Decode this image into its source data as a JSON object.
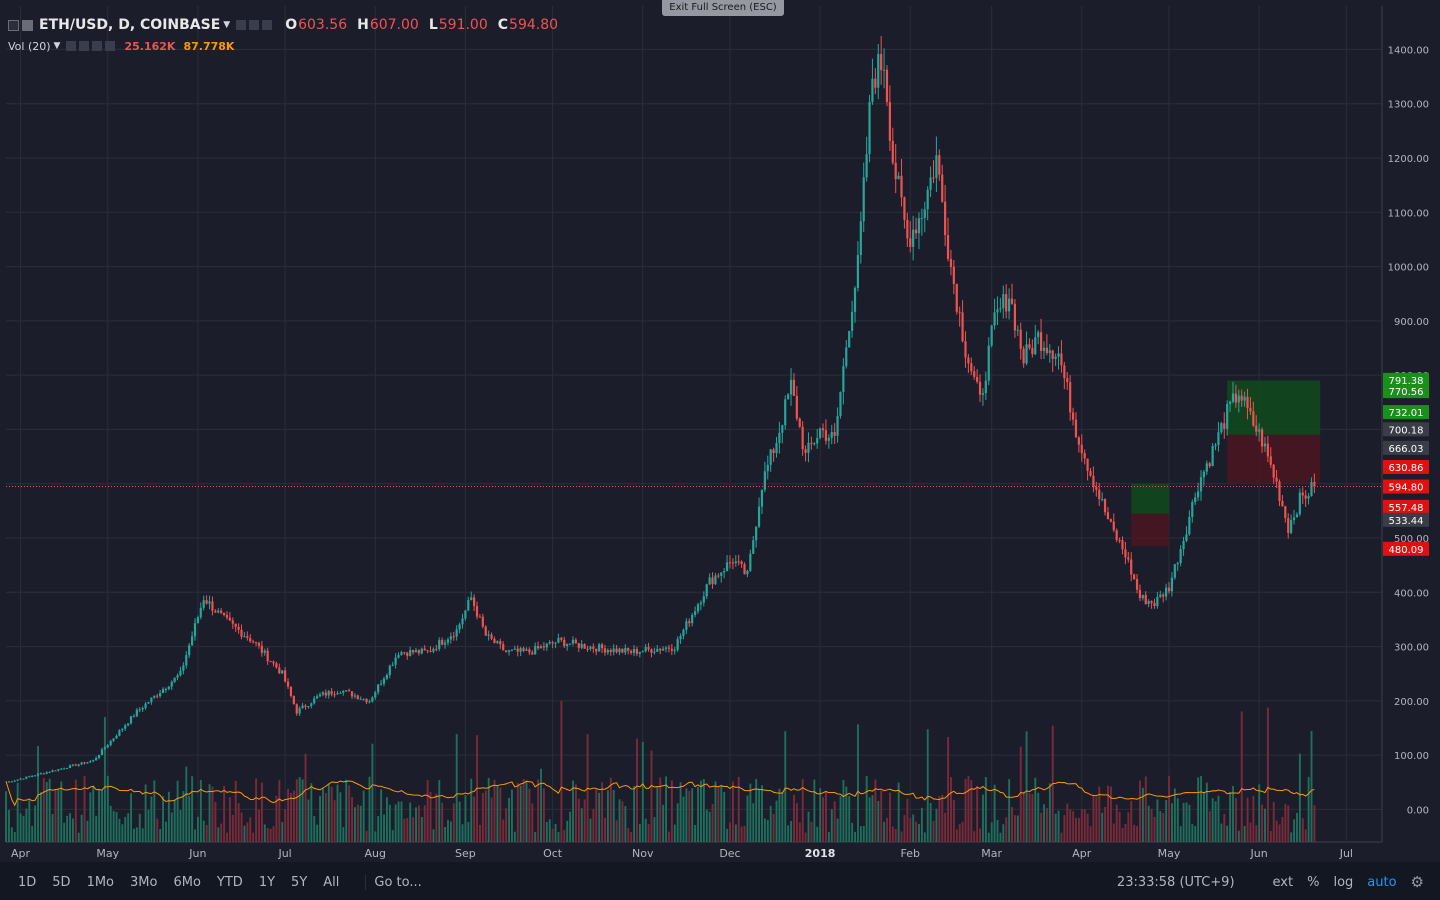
{
  "header": {
    "symbol": "ETH/USD, D, COINBASE",
    "o_label": "O",
    "o_value": "603.56",
    "h_label": "H",
    "h_value": "607.00",
    "l_label": "L",
    "l_value": "591.00",
    "c_label": "C",
    "c_value": "594.80"
  },
  "volume": {
    "title": "Vol (20)",
    "value": "25.162K",
    "ma_value": "87.778K"
  },
  "exit_fullscreen": "Exit Full Screen (ESC)",
  "colors": {
    "up": "#26a69a",
    "down": "#ef5350",
    "bg": "#1c1d2b",
    "grid": "#2a2e39",
    "ma": "#ff9800",
    "accent": "#2196f3"
  },
  "chart_data": {
    "type": "candlestick",
    "title": "ETH/USD, D, COINBASE",
    "ylim": [
      -60,
      1480
    ],
    "y_ticks": [
      "1400.00",
      "1300.00",
      "1200.00",
      "1100.00",
      "1000.00",
      "900.00",
      "800.00",
      "700.00",
      "600.00",
      "500.00",
      "400.00",
      "300.00",
      "200.00",
      "100.00",
      "0.00"
    ],
    "y_tick_values": [
      1400,
      1300,
      1200,
      1100,
      1000,
      900,
      800,
      700,
      600,
      500,
      400,
      300,
      200,
      100,
      0
    ],
    "x_months": [
      "Apr",
      "May",
      "Jun",
      "Jul",
      "Aug",
      "Sep",
      "Oct",
      "Nov",
      "Dec",
      "2018",
      "Feb",
      "Mar",
      "Apr",
      "May",
      "Jun",
      "Jul"
    ],
    "anchors": [
      [
        0,
        50
      ],
      [
        30,
        90
      ],
      [
        45,
        180
      ],
      [
        60,
        250
      ],
      [
        68,
        390
      ],
      [
        75,
        350
      ],
      [
        85,
        310
      ],
      [
        95,
        250
      ],
      [
        100,
        180
      ],
      [
        108,
        210
      ],
      [
        115,
        220
      ],
      [
        125,
        200
      ],
      [
        135,
        290
      ],
      [
        145,
        290
      ],
      [
        155,
        330
      ],
      [
        160,
        390
      ],
      [
        165,
        320
      ],
      [
        172,
        290
      ],
      [
        180,
        290
      ],
      [
        190,
        310
      ],
      [
        200,
        300
      ],
      [
        215,
        290
      ],
      [
        230,
        300
      ],
      [
        242,
        420
      ],
      [
        250,
        460
      ],
      [
        255,
        430
      ],
      [
        260,
        600
      ],
      [
        265,
        680
      ],
      [
        270,
        780
      ],
      [
        275,
        650
      ],
      [
        280,
        700
      ],
      [
        285,
        680
      ],
      [
        290,
        900
      ],
      [
        293,
        1000
      ],
      [
        298,
        1350
      ],
      [
        302,
        1380
      ],
      [
        305,
        1200
      ],
      [
        310,
        1050
      ],
      [
        315,
        1100
      ],
      [
        320,
        1200
      ],
      [
        325,
        1000
      ],
      [
        330,
        850
      ],
      [
        335,
        750
      ],
      [
        340,
        900
      ],
      [
        345,
        950
      ],
      [
        350,
        830
      ],
      [
        355,
        870
      ],
      [
        362,
        840
      ],
      [
        368,
        700
      ],
      [
        373,
        620
      ],
      [
        380,
        520
      ],
      [
        385,
        470
      ],
      [
        390,
        390
      ],
      [
        395,
        380
      ],
      [
        400,
        410
      ],
      [
        405,
        500
      ],
      [
        410,
        600
      ],
      [
        415,
        660
      ],
      [
        420,
        730
      ],
      [
        424,
        770
      ],
      [
        428,
        720
      ],
      [
        432,
        680
      ],
      [
        437,
        600
      ],
      [
        441,
        520
      ],
      [
        445,
        570
      ],
      [
        450,
        594.8
      ]
    ],
    "price_labels": [
      {
        "value": "791.38",
        "price": 791.38,
        "color": "#1b8f1b",
        "text_color": "#ffffff"
      },
      {
        "value": "770.56",
        "price": 770.56,
        "color": "#1b8f1b",
        "text_color": "#ffffff"
      },
      {
        "value": "732.01",
        "price": 732.01,
        "color": "#1b8f1b",
        "text_color": "#ffffff"
      },
      {
        "value": "700.18",
        "price": 700.18,
        "color": "#3a3d48",
        "text_color": "#ffffff"
      },
      {
        "value": "666.03",
        "price": 666.03,
        "color": "#3a3d48",
        "text_color": "#ffffff"
      },
      {
        "value": "630.86",
        "price": 630.86,
        "color": "#e01010",
        "text_color": "#ffffff"
      },
      {
        "value": "594.80",
        "price": 594.8,
        "color": "#e01010",
        "text_color": "#ffffff"
      },
      {
        "value": "557.48",
        "price": 557.48,
        "color": "#e01010",
        "text_color": "#ffffff"
      },
      {
        "value": "533.44",
        "price": 533.44,
        "color": "#3a3d48",
        "text_color": "#ffffff"
      },
      {
        "value": "480.09",
        "price": 480.09,
        "color": "#e01010",
        "text_color": "#ffffff"
      }
    ],
    "current_price": 594.8
  },
  "bottom_bar": {
    "ranges": [
      "1D",
      "5D",
      "1Mo",
      "3Mo",
      "6Mo",
      "YTD",
      "1Y",
      "5Y",
      "All"
    ],
    "goto": "Go to...",
    "clock": "23:33:58 (UTC+9)",
    "ext": "ext",
    "percent": "%",
    "log": "log",
    "auto": "auto",
    "settings_icon": "gear-icon"
  }
}
